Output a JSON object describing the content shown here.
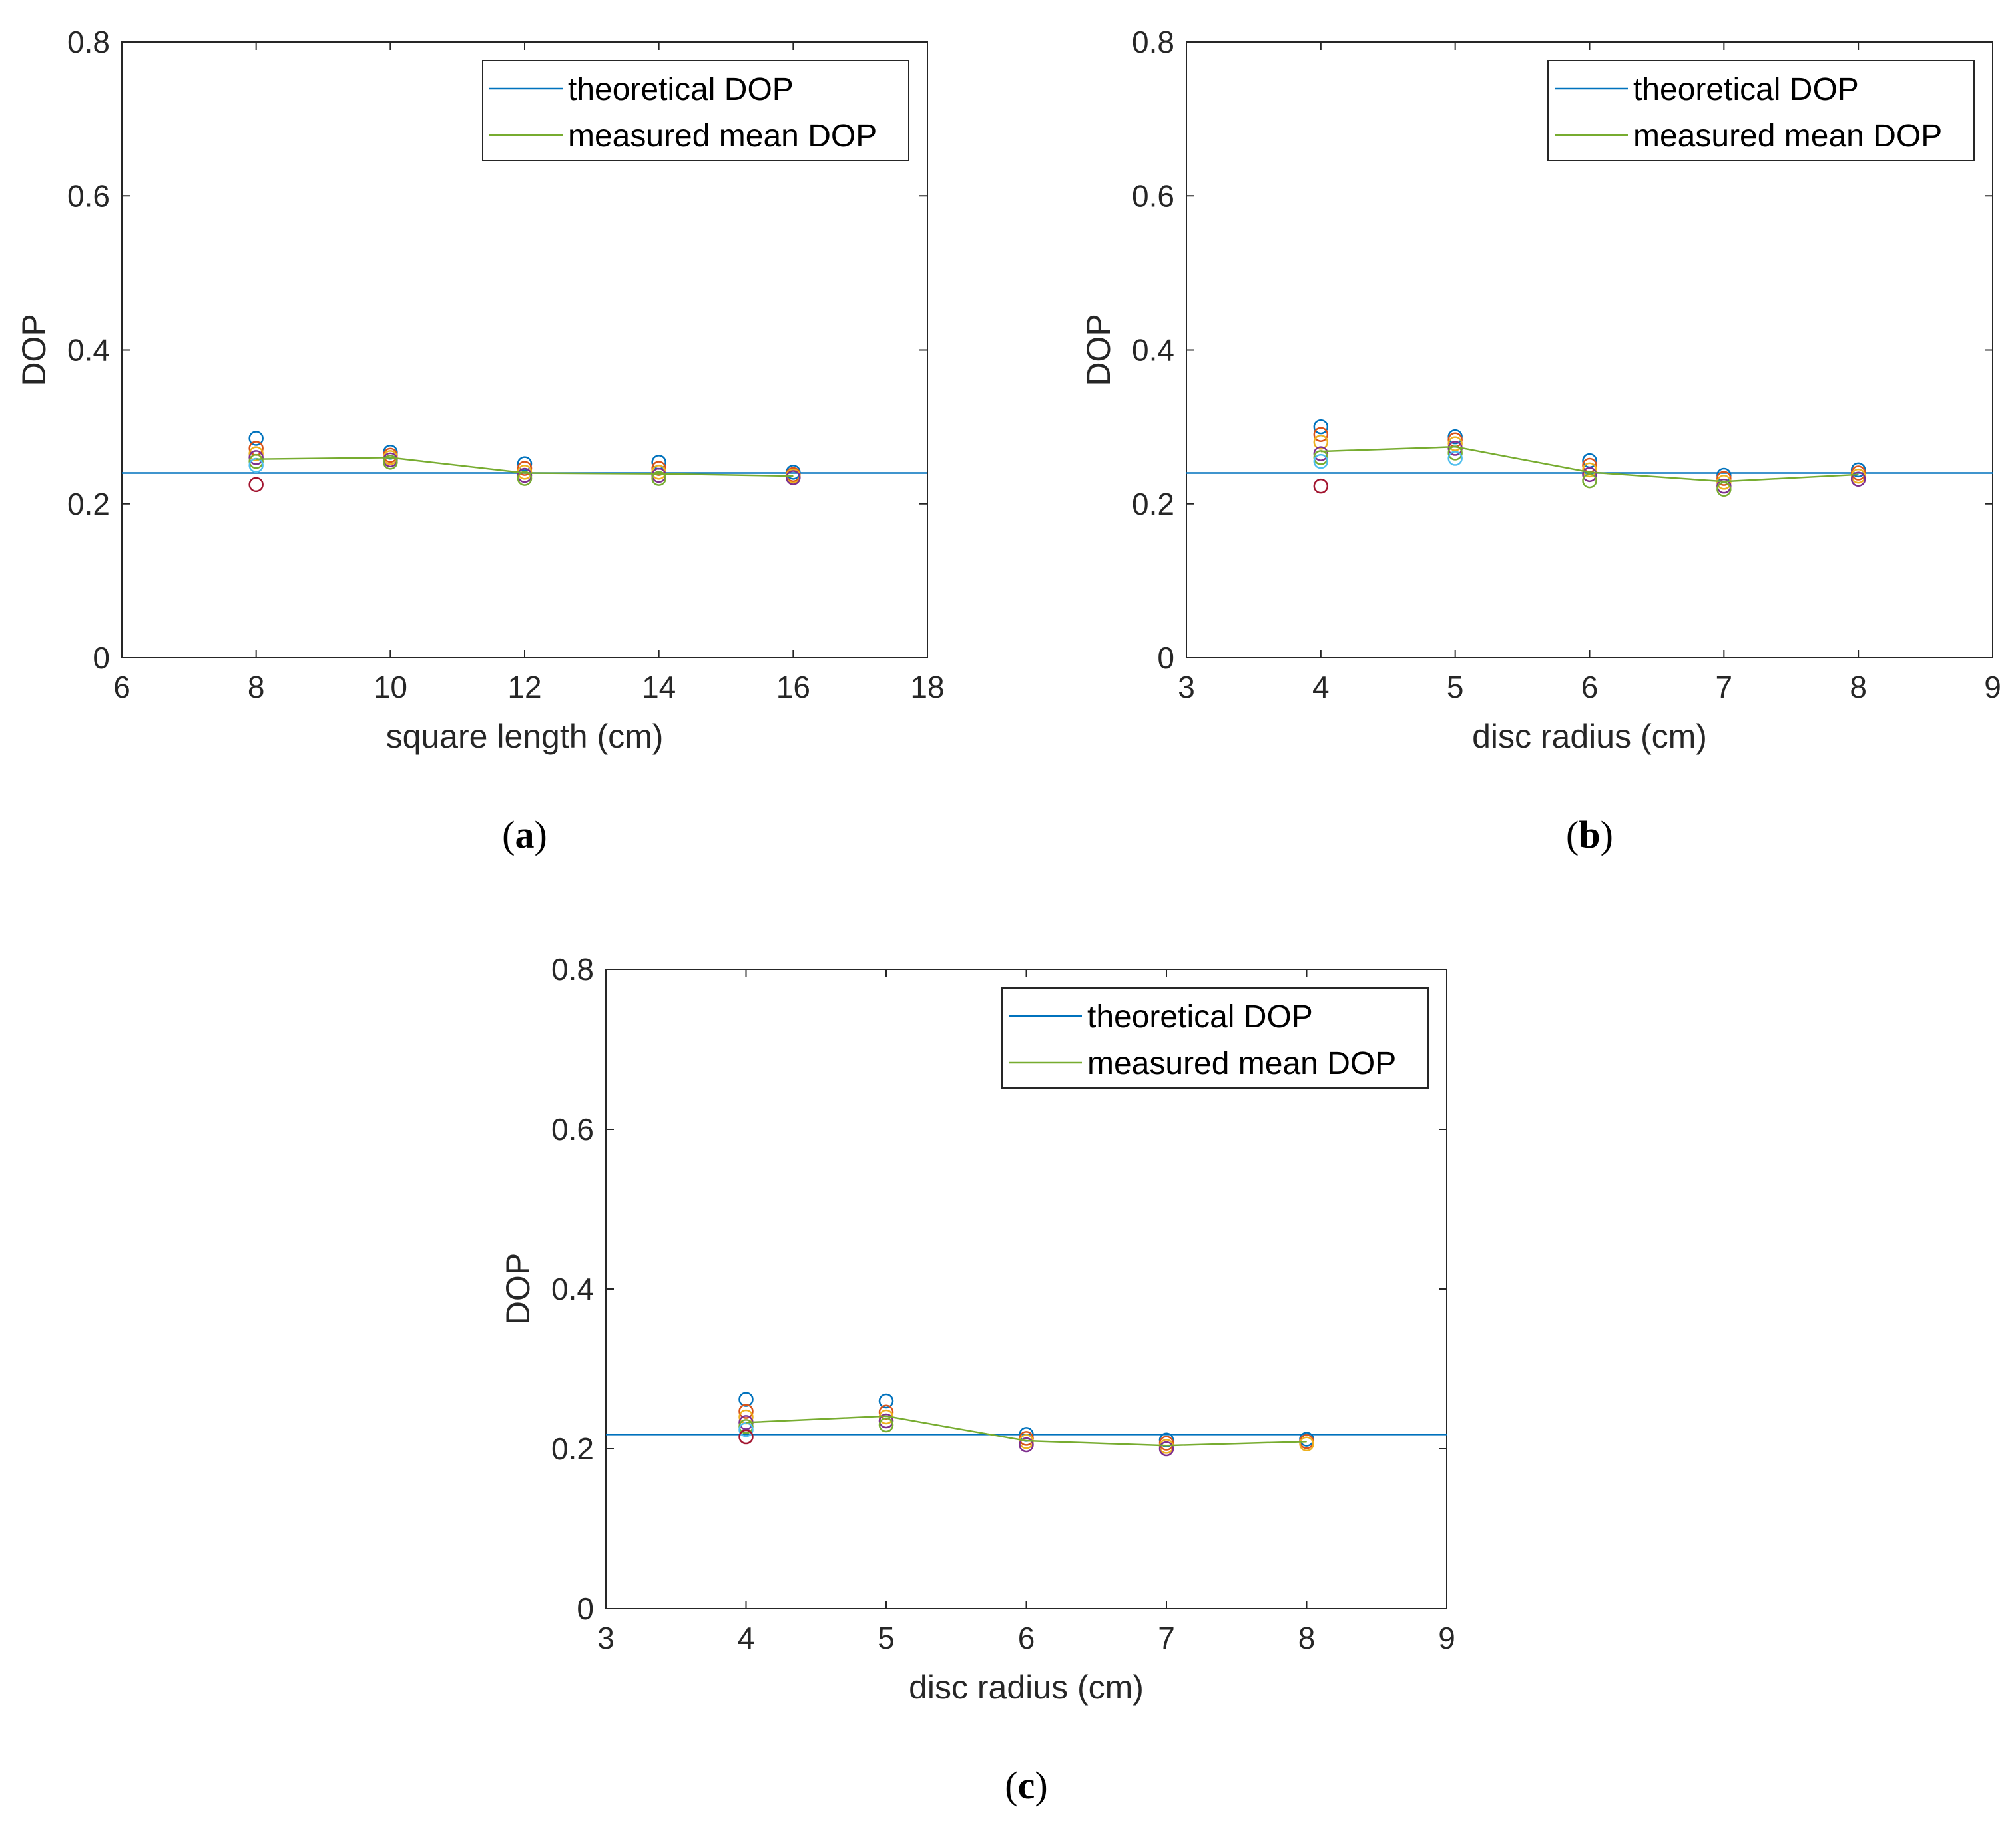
{
  "colors": {
    "theoretical": "#0072BD",
    "measured": "#77AC30",
    "axis": "#262626",
    "markers": [
      "#0072BD",
      "#D95319",
      "#EDB120",
      "#7E2F8E",
      "#77AC30",
      "#4DBEEE",
      "#A2142F"
    ]
  },
  "chart_data": [
    {
      "id": "a",
      "type": "scatter",
      "caption": {
        "open": "(",
        "letter": "a",
        "close": ")"
      },
      "xlabel": "square length (cm)",
      "ylabel": "DOP",
      "xlim": [
        6,
        18
      ],
      "ylim": [
        0,
        0.8
      ],
      "xticks": [
        "6",
        "8",
        "10",
        "12",
        "14",
        "16",
        "18"
      ],
      "yticks": [
        "0",
        "0.2",
        "0.4",
        "0.6",
        "0.8"
      ],
      "legend": {
        "position": "top-right",
        "entries": [
          "theoretical DOP",
          "measured mean DOP"
        ]
      },
      "theoretical": 0.24,
      "mean": {
        "x": [
          8,
          10,
          12,
          14,
          16
        ],
        "y": [
          0.258,
          0.26,
          0.24,
          0.239,
          0.236
        ]
      },
      "points": [
        {
          "x": 8,
          "values": [
            0.285,
            0.272,
            0.265,
            0.26,
            0.255,
            0.25,
            0.225
          ]
        },
        {
          "x": 10,
          "values": [
            0.267,
            0.263,
            0.26,
            0.257,
            0.254
          ]
        },
        {
          "x": 12,
          "values": [
            0.252,
            0.246,
            0.241,
            0.237,
            0.233
          ]
        },
        {
          "x": 14,
          "values": [
            0.254,
            0.246,
            0.241,
            0.237,
            0.233
          ]
        },
        {
          "x": 16,
          "values": [
            0.241,
            0.238,
            0.236,
            0.234
          ]
        }
      ]
    },
    {
      "id": "b",
      "type": "scatter",
      "caption": {
        "open": "(",
        "letter": "b",
        "close": ")"
      },
      "xlabel": "disc radius (cm)",
      "ylabel": "DOP",
      "xlim": [
        3,
        9
      ],
      "ylim": [
        0,
        0.8
      ],
      "xticks": [
        "3",
        "4",
        "5",
        "6",
        "7",
        "8",
        "9"
      ],
      "yticks": [
        "0",
        "0.2",
        "0.4",
        "0.6",
        "0.8"
      ],
      "legend": {
        "position": "top-right",
        "entries": [
          "theoretical DOP",
          "measured mean DOP"
        ]
      },
      "theoretical": 0.24,
      "mean": {
        "x": [
          4,
          5,
          6,
          7,
          8
        ],
        "y": [
          0.268,
          0.274,
          0.241,
          0.229,
          0.238
        ]
      },
      "points": [
        {
          "x": 4,
          "values": [
            0.3,
            0.29,
            0.28,
            0.265,
            0.26,
            0.255,
            0.223
          ]
        },
        {
          "x": 5,
          "values": [
            0.287,
            0.283,
            0.278,
            0.272,
            0.266,
            0.259
          ]
        },
        {
          "x": 6,
          "values": [
            0.256,
            0.25,
            0.244,
            0.238,
            0.23
          ]
        },
        {
          "x": 7,
          "values": [
            0.237,
            0.233,
            0.228,
            0.223,
            0.219
          ]
        },
        {
          "x": 8,
          "values": [
            0.244,
            0.24,
            0.236,
            0.232
          ]
        }
      ]
    },
    {
      "id": "c",
      "type": "scatter",
      "caption": {
        "open": "(",
        "letter": "c",
        "close": ")"
      },
      "xlabel": "disc radius (cm)",
      "ylabel": "DOP",
      "xlim": [
        3,
        9
      ],
      "ylim": [
        0,
        0.8
      ],
      "xticks": [
        "3",
        "4",
        "5",
        "6",
        "7",
        "8",
        "9"
      ],
      "yticks": [
        "0",
        "0.2",
        "0.4",
        "0.6",
        "0.8"
      ],
      "legend": {
        "position": "top-right",
        "entries": [
          "theoretical DOP",
          "measured mean DOP"
        ]
      },
      "theoretical": 0.218,
      "mean": {
        "x": [
          4,
          5,
          6,
          7,
          8
        ],
        "y": [
          0.233,
          0.241,
          0.21,
          0.204,
          0.209
        ]
      },
      "points": [
        {
          "x": 4,
          "values": [
            0.262,
            0.247,
            0.24,
            0.233,
            0.228,
            0.224,
            0.215
          ]
        },
        {
          "x": 5,
          "values": [
            0.26,
            0.246,
            0.24,
            0.235,
            0.23
          ]
        },
        {
          "x": 6,
          "values": [
            0.218,
            0.213,
            0.209,
            0.205
          ]
        },
        {
          "x": 7,
          "values": [
            0.211,
            0.207,
            0.203,
            0.2
          ]
        },
        {
          "x": 8,
          "values": [
            0.212,
            0.209,
            0.206
          ]
        }
      ]
    }
  ]
}
